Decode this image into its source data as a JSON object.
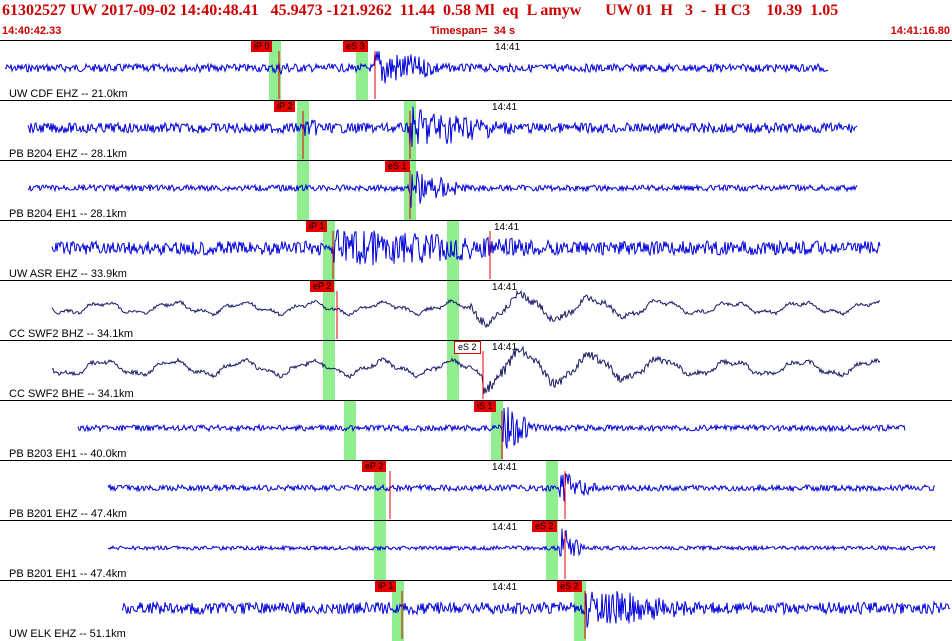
{
  "header": {
    "title": "61302527 UW 2017-09-02 14:40:48.41   45.9473 -121.9262  11.44  0.58 Ml  eq  L amyw      UW 01  H   3  -  H C3    10.39  1.05",
    "start_time": "14:40:42.33",
    "timespan": "Timespan=  34 s",
    "end_time": "14:41:16.80"
  },
  "colors": {
    "trace_blue": "#0000dd",
    "trace_navy": "#1a1a66",
    "pick_red": "#e60000",
    "window_green": "#90ee90",
    "header_red": "#cc0000"
  },
  "minute_label": "14:41",
  "traces": [
    {
      "label": "UW CDF EHZ -- 21.0km",
      "color": "blue",
      "picks": [
        {
          "text": "iP 0",
          "outline": false
        },
        {
          "text": "eS 3",
          "outline": false
        }
      ]
    },
    {
      "label": "PB B204 EHZ -- 28.1km",
      "color": "blue",
      "picks": [
        {
          "text": "iP 2",
          "outline": false
        }
      ]
    },
    {
      "label": "PB B204 EH1 -- 28.1km",
      "color": "blue",
      "picks": [
        {
          "text": "eS 1",
          "outline": false
        }
      ]
    },
    {
      "label": "UW ASR EHZ -- 33.9km",
      "color": "blue",
      "picks": [
        {
          "text": "iP 1",
          "outline": false
        }
      ]
    },
    {
      "label": "CC SWF2 BHZ -- 34.1km",
      "color": "navy",
      "picks": [
        {
          "text": "eP 2",
          "outline": false
        }
      ]
    },
    {
      "label": "CC SWF2 BHE -- 34.1km",
      "color": "navy",
      "picks": [
        {
          "text": "eS 2",
          "outline": true
        }
      ]
    },
    {
      "label": "PB B203 EH1 -- 40.0km",
      "color": "blue",
      "picks": [
        {
          "text": "iS 1",
          "outline": false
        }
      ]
    },
    {
      "label": "PB B201 EHZ -- 47.4km",
      "color": "blue",
      "picks": [
        {
          "text": "eP 2",
          "outline": false
        }
      ]
    },
    {
      "label": "PB B201 EH1 -- 47.4km",
      "color": "blue",
      "picks": [
        {
          "text": "eS 2",
          "outline": false
        }
      ]
    },
    {
      "label": "UW ELK EHZ -- 51.1km",
      "color": "blue",
      "picks": [
        {
          "text": "iP 1",
          "outline": false
        },
        {
          "text": "eS 2",
          "outline": false
        }
      ]
    }
  ]
}
